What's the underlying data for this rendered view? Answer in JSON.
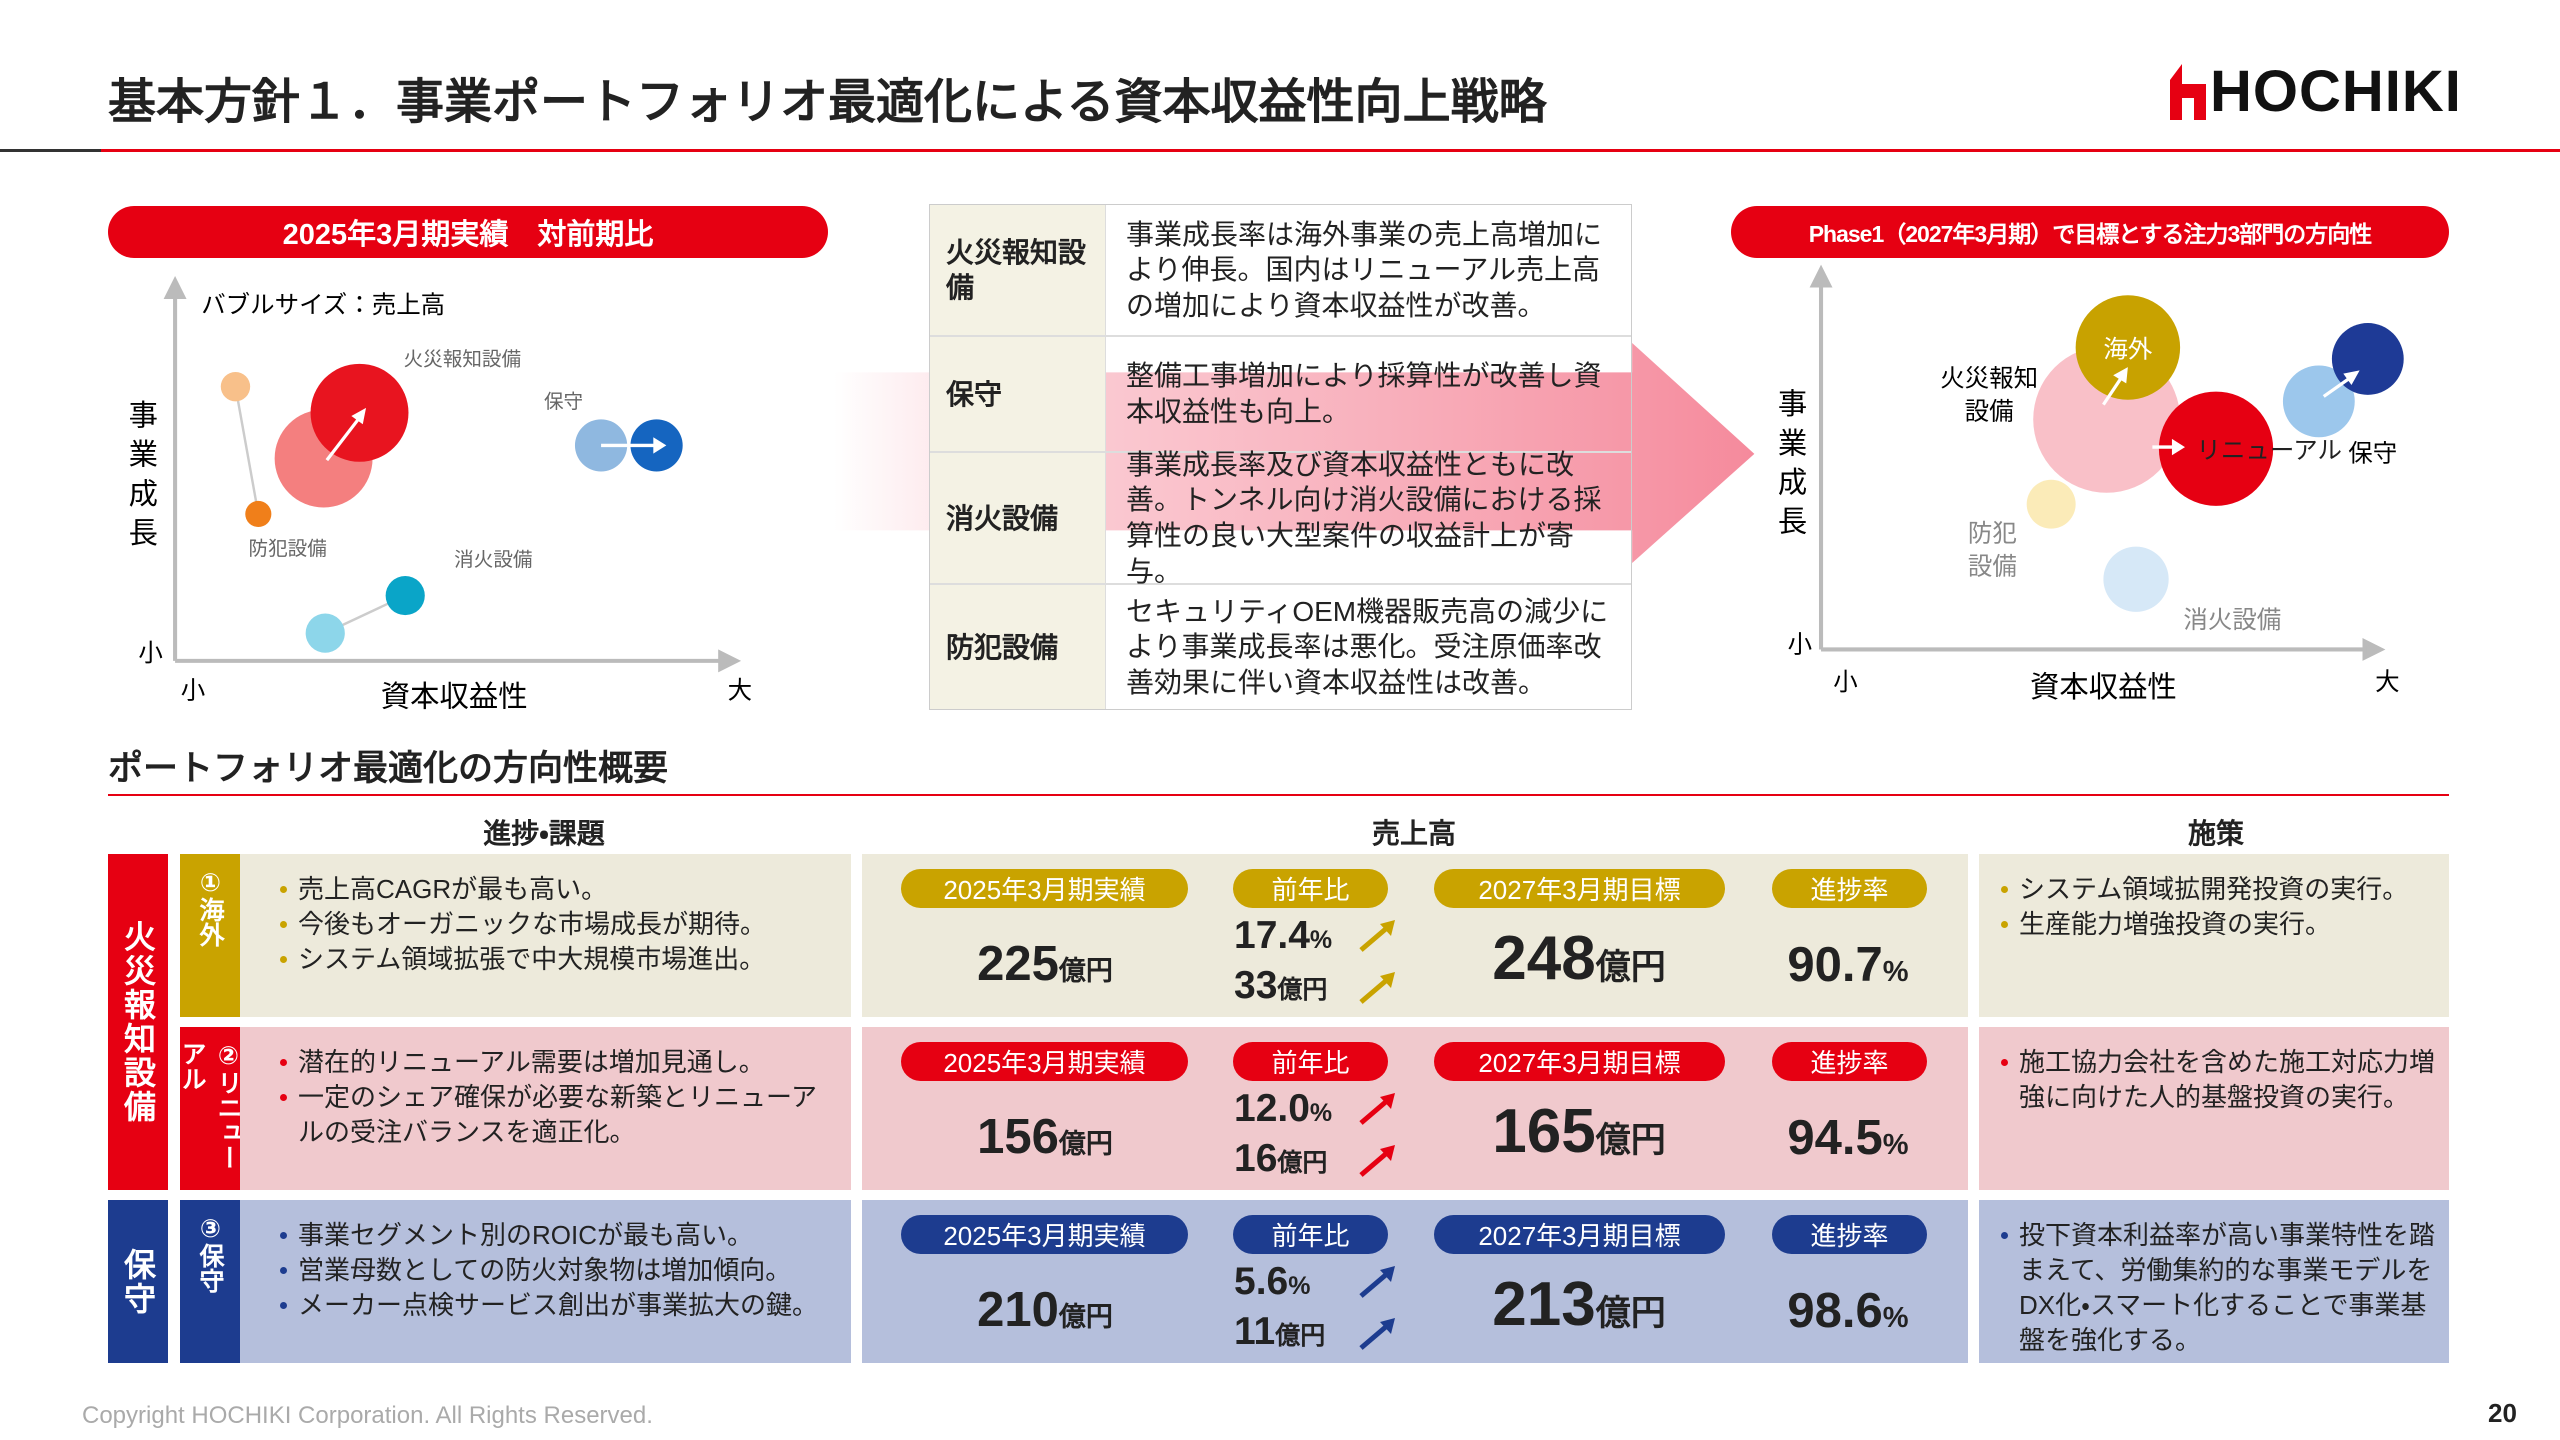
{
  "header": {
    "title": "基本方針１．事業ポートフォリオ最適化による資本収益性向上戦略",
    "logo": "HOCHIKI"
  },
  "left_chart": {
    "title": "2025年3月期実績　対前期比",
    "note": "バブルサイズ：売上高",
    "y_label": "事業成長",
    "x_label": "資本収益性",
    "y_low": "小",
    "x_low": "小",
    "x_high": "大",
    "labels": {
      "fire": "火災報知設備",
      "maintenance": "保守",
      "security": "防犯設備",
      "extinguish": "消火設備"
    }
  },
  "mid_table": {
    "rows": [
      [
        "火災報知設備",
        "事業成長率は海外事業の売上高増加により伸長。国内はリニューアル売上高の増加により資本収益性が改善。"
      ],
      [
        "保守",
        "整備工事増加により採算性が改善し資本収益性も向上。"
      ],
      [
        "消火設備",
        "事業成長率及び資本収益性ともに改善。トンネル向け消火設備における採算性の良い大型案件の収益計上が寄与。"
      ],
      [
        "防犯設備",
        "セキュリティOEM機器販売高の減少により事業成長率は悪化。受注原価率改善効果に伴い資本収益性は改善。"
      ]
    ]
  },
  "right_chart": {
    "title": "Phase1（2027年3月期）で目標とする注力3部門の方向性",
    "y_label": "事業成長",
    "x_label": "資本収益性",
    "y_low": "小",
    "x_low": "小",
    "x_high": "大",
    "labels": {
      "overseas": "海外",
      "fire": [
        "火災報知",
        "設備"
      ],
      "renewal": "リニューアル",
      "maintenance": "保守",
      "security": [
        "防犯",
        "設備"
      ],
      "extinguish": "消火設備"
    }
  },
  "overview": {
    "title": "ポートフォリオ最適化の方向性概要",
    "columns": [
      "進捗・課題",
      "売上高",
      "施策"
    ],
    "groups": [
      "火災報知設備",
      "保守"
    ],
    "sales_labels": {
      "actual": "2025年3月期実績",
      "yoy": "前年比",
      "target": "2027年3月期目標",
      "progress": "進捗率"
    },
    "units": {
      "amount": "億円",
      "percent": "%"
    },
    "rows": [
      {
        "segment": "①海外",
        "issues": [
          "売上高CAGRが最も高い。",
          "今後もオーガニックな市場成長が期待。",
          "システム領域拡張で中大規模市場進出。"
        ],
        "actual": "225",
        "yoy_pct": "17.4",
        "yoy_amount": "33",
        "target": "248",
        "progress": "90.7",
        "measures": [
          "システム領域拡開発投資の実行。",
          "生産能力増強投資の実行。"
        ]
      },
      {
        "segment": "②リニューアル",
        "issues": [
          "潜在的リニューアル需要は増加見通し。",
          "一定のシェア確保が必要な新築とリニューアルの受注バランスを適正化。"
        ],
        "actual": "156",
        "yoy_pct": "12.0",
        "yoy_amount": "16",
        "target": "165",
        "progress": "94.5",
        "measures": [
          "施工協力会社を含めた施工対応力増強に向けた人的基盤投資の実行。"
        ]
      },
      {
        "segment": "③保守",
        "issues": [
          "事業セグメント別のROICが最も高い。",
          "営業母数としての防火対象物は増加傾向。",
          "メーカー点検サービス創出が事業拡大の鍵。"
        ],
        "actual": "210",
        "yoy_pct": "5.6",
        "yoy_amount": "11",
        "target": "213",
        "progress": "98.6",
        "measures": [
          "投下資本利益率が高い事業特性を踏まえて、労働集約的な事業モデルをDX化・スマート化することで事業基盤を強化する。"
        ]
      }
    ]
  },
  "footer": {
    "copyright": "Copyright HOCHIKI Corporation. All Rights Reserved.",
    "page": "20"
  }
}
